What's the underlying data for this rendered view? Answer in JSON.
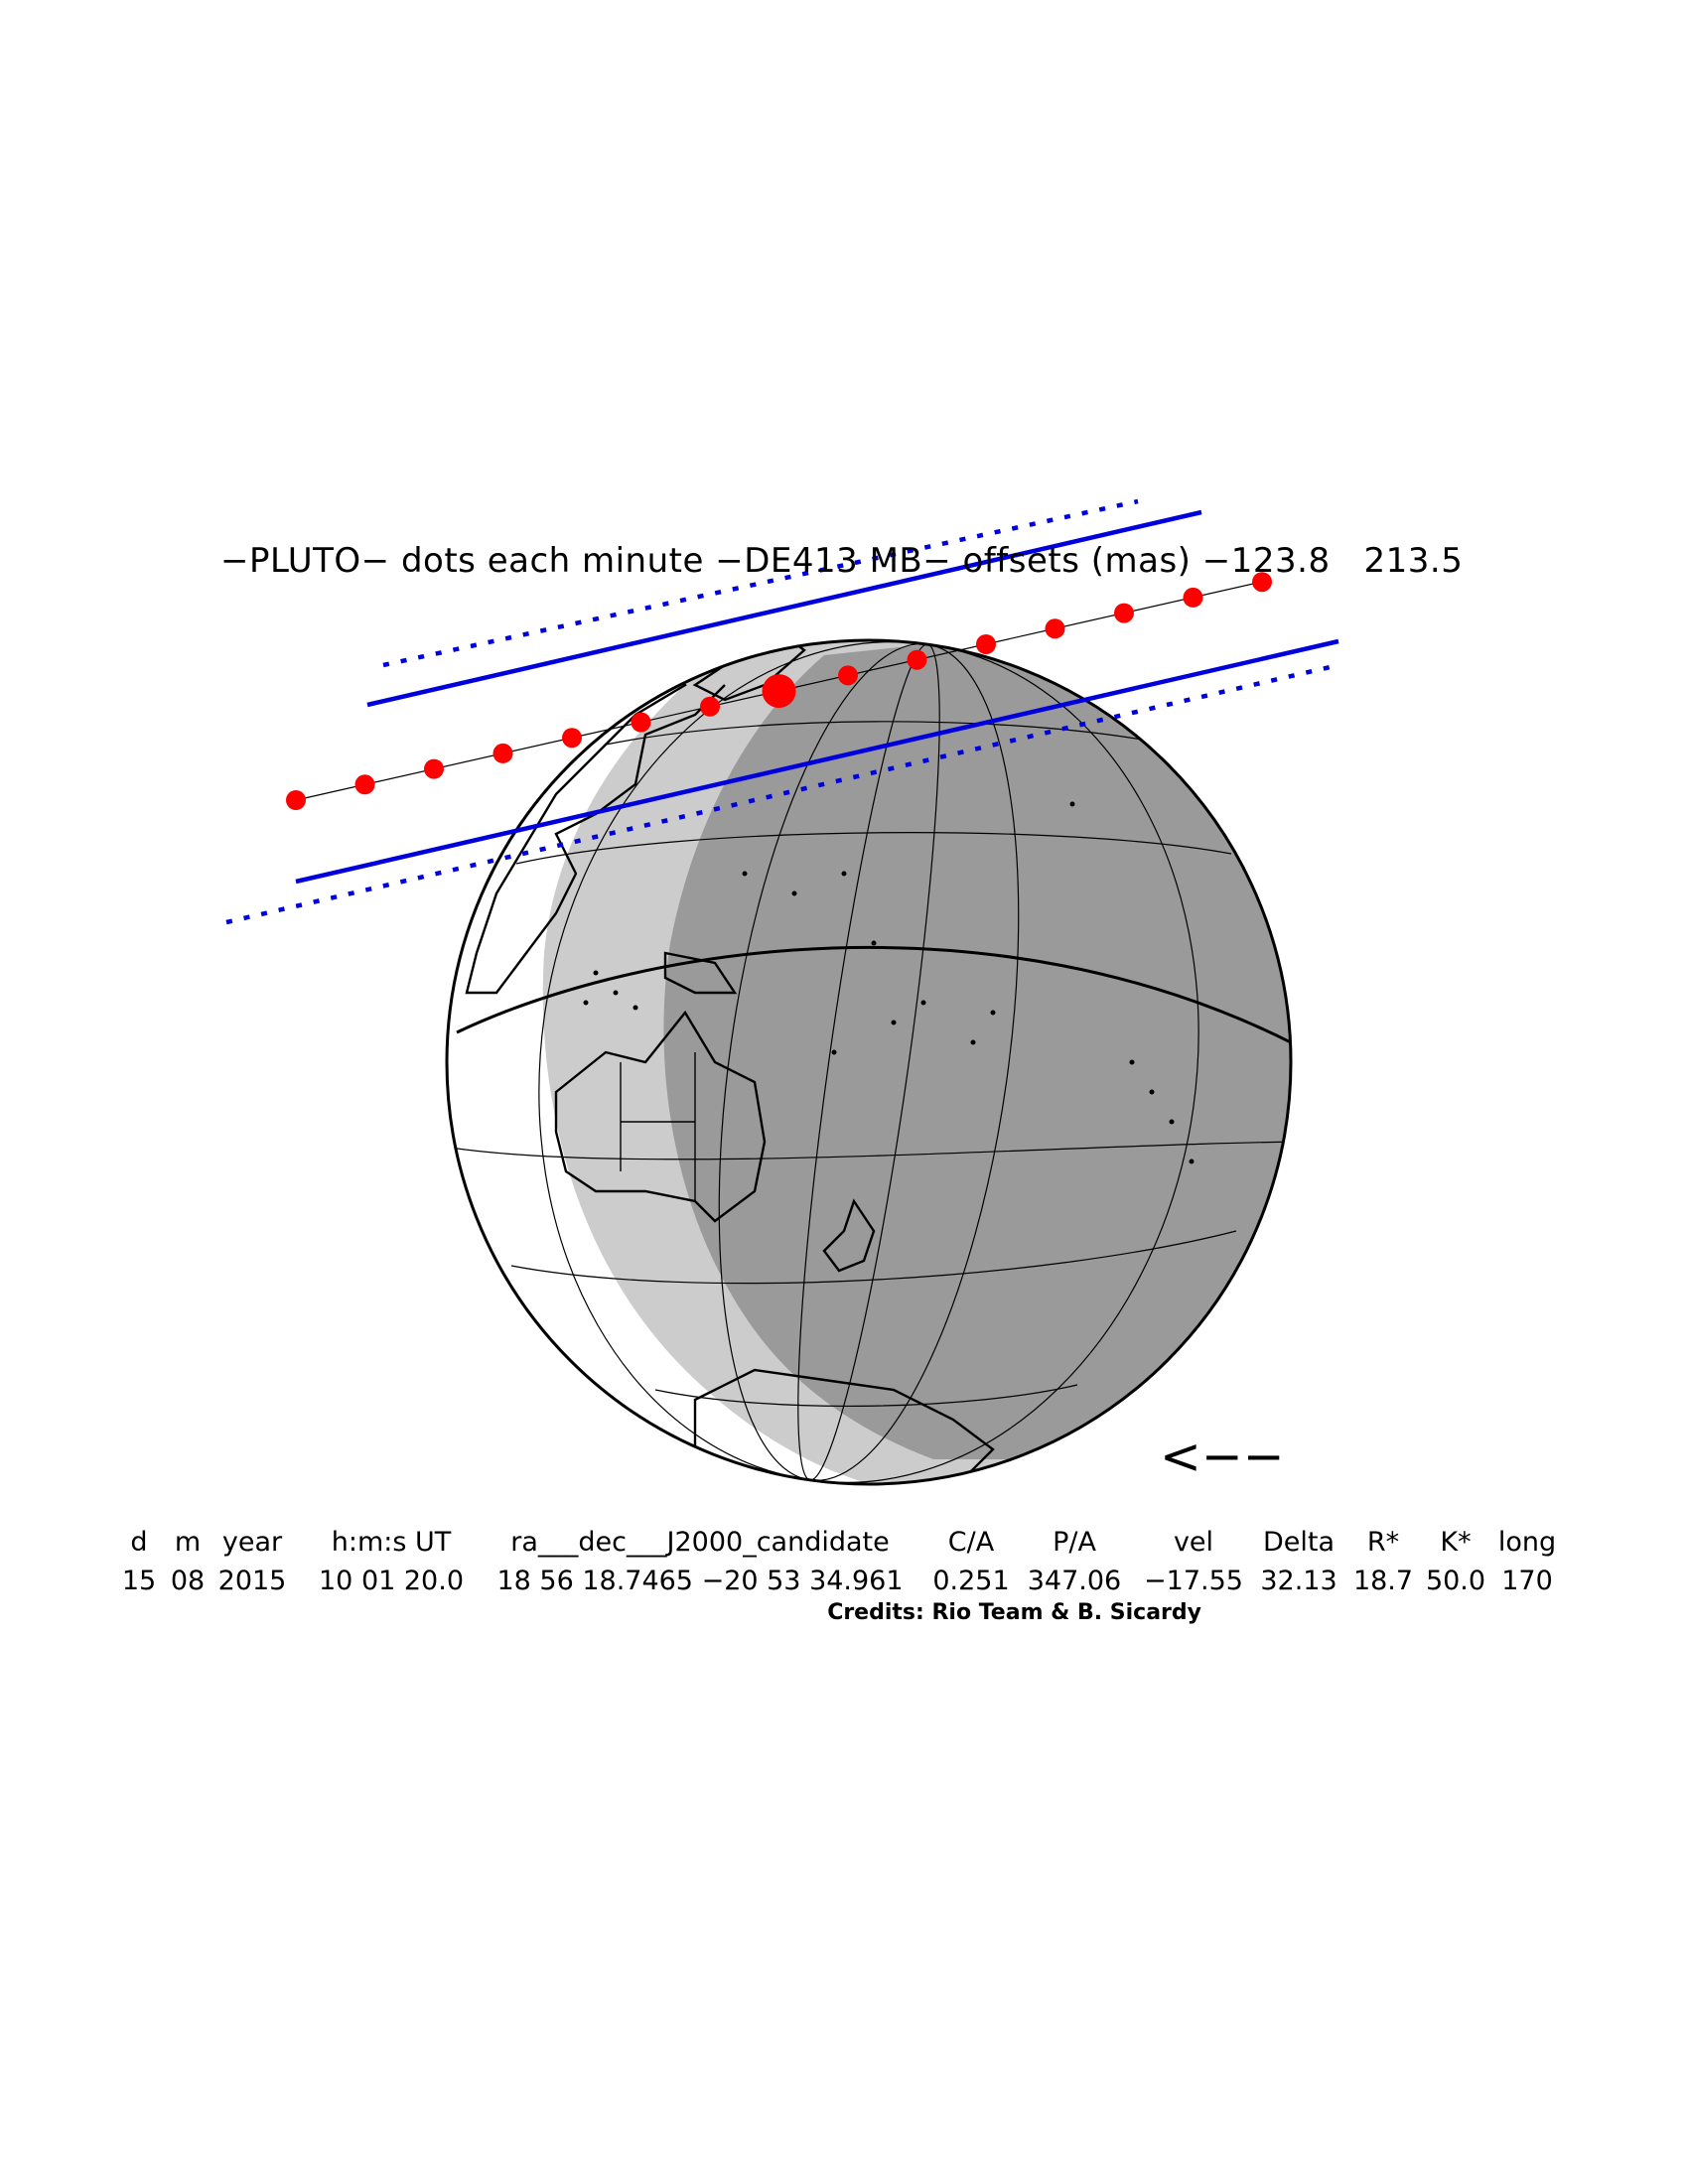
{
  "title": "−PLUTO− dots each minute −DE413 MB− offsets (mas) −123.8   213.5",
  "direction_arrow": "<−−",
  "table": {
    "headers": [
      "d",
      "m",
      "year",
      "h:m:s UT",
      "ra___dec___J2000_candidate",
      "C/A",
      "P/A",
      "vel",
      "Delta",
      "R*",
      "K*",
      "long"
    ],
    "values": [
      "15",
      "08",
      "2015",
      "10 01 20.0",
      "18 56 18.7465 −20 53 34.961",
      "0.251",
      "347.06",
      "−17.55",
      "32.13",
      "18.7",
      "50.0",
      "170"
    ]
  },
  "credits": "Credits: Rio Team & B. Sicardy",
  "colors": {
    "path_dots": "#ff0000",
    "shadow_limits": "#0000dd",
    "night": "#9a9a9a",
    "twilight": "#cccccc",
    "outline": "#000000"
  },
  "occultation": {
    "dots_per_minute": 1,
    "dot_count": 15,
    "central_dot_index": 7
  }
}
